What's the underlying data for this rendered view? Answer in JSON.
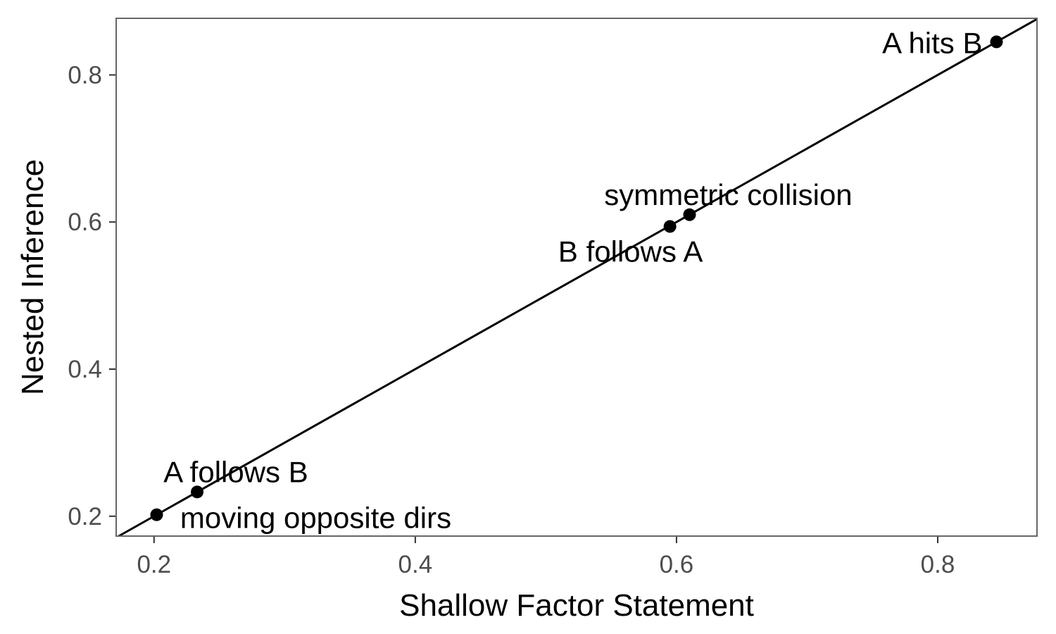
{
  "chart_data": {
    "type": "scatter",
    "title": "",
    "xlabel": "Shallow Factor Statement",
    "ylabel": "Nested Inference",
    "xlim": [
      0.171,
      0.876
    ],
    "ylim": [
      0.173,
      0.877
    ],
    "xticks": [
      0.2,
      0.4,
      0.6,
      0.8
    ],
    "yticks": [
      0.2,
      0.4,
      0.6,
      0.8
    ],
    "xtick_labels": [
      "0.2",
      "0.4",
      "0.6",
      "0.8"
    ],
    "ytick_labels": [
      "0.2",
      "0.4",
      "0.6",
      "0.8"
    ],
    "grid": false,
    "reference_line": "y = x",
    "points": [
      {
        "label": "A hits B",
        "x": 0.845,
        "y": 0.845
      },
      {
        "label": "symmetric collision",
        "x": 0.61,
        "y": 0.61
      },
      {
        "label": "B follows A",
        "x": 0.595,
        "y": 0.594
      },
      {
        "label": "A follows B",
        "x": 0.233,
        "y": 0.233
      },
      {
        "label": "moving opposite dirs",
        "x": 0.202,
        "y": 0.202
      }
    ]
  }
}
